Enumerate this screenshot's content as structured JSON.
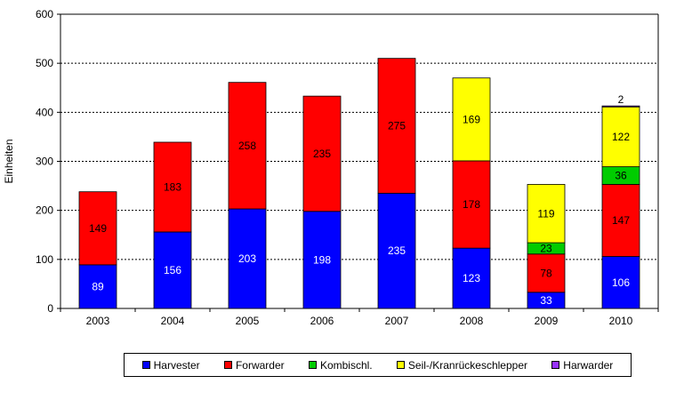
{
  "chart_data": {
    "type": "bar",
    "stacked": true,
    "categories": [
      "2003",
      "2004",
      "2005",
      "2006",
      "2007",
      "2008",
      "2009",
      "2010"
    ],
    "series": [
      {
        "name": "Harvester",
        "color": "#0000ff",
        "values": [
          89,
          156,
          203,
          198,
          235,
          123,
          33,
          106
        ],
        "labels": [
          "89",
          "156",
          "203",
          "198",
          "235",
          "123",
          "33",
          "106"
        ]
      },
      {
        "name": "Forwarder",
        "color": "#ff0000",
        "values": [
          149,
          183,
          258,
          235,
          275,
          178,
          78,
          147
        ],
        "labels": [
          "149",
          "183",
          "258",
          "235",
          "275",
          "178",
          "78",
          "147"
        ]
      },
      {
        "name": "Kombischl.",
        "color": "#00cc00",
        "values": [
          0,
          0,
          0,
          0,
          0,
          0,
          23,
          36
        ],
        "labels": [
          "",
          "",
          "",
          "",
          "",
          "",
          "23",
          "36"
        ]
      },
      {
        "name": "Seil-/Kranrückeschlepper",
        "color": "#ffff00",
        "values": [
          0,
          0,
          0,
          0,
          0,
          169,
          119,
          122
        ],
        "labels": [
          "",
          "",
          "",
          "",
          "",
          "169",
          "119",
          "122"
        ]
      },
      {
        "name": "Harwarder",
        "color": "#9933ff",
        "values": [
          0,
          0,
          0,
          0,
          0,
          0,
          0,
          2
        ],
        "labels": [
          "",
          "",
          "",
          "",
          "",
          "",
          "",
          "2"
        ]
      }
    ],
    "title": "",
    "xlabel": "",
    "ylabel": "Einheiten",
    "ylim": [
      0,
      600
    ],
    "yticks": [
      0,
      100,
      200,
      300,
      400,
      500,
      600
    ],
    "grid": true,
    "legend_position": "bottom"
  }
}
